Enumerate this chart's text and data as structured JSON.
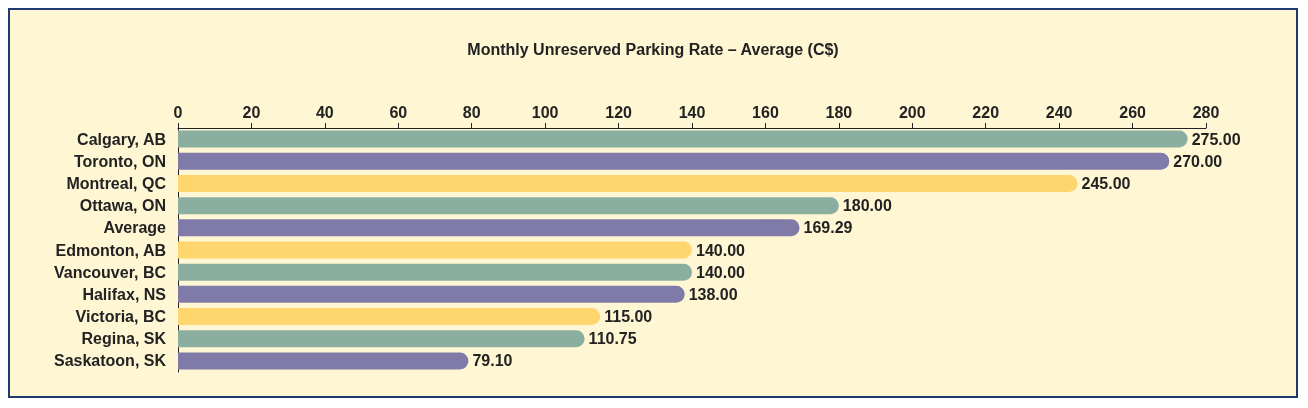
{
  "chart_data": {
    "type": "bar",
    "orientation": "horizontal",
    "title": "Monthly Unreserved Parking Rate – Average (C$)",
    "categories": [
      "Calgary, AB",
      "Toronto, ON",
      "Montreal, QC",
      "Ottawa, ON",
      "Average",
      "Edmonton, AB",
      "Vancouver, BC",
      "Halifax, NS",
      "Victoria, BC",
      "Regina, SK",
      "Saskatoon, SK"
    ],
    "values": [
      275,
      270,
      245,
      180,
      169.29,
      140,
      140,
      138,
      115,
      110.75,
      79.1
    ],
    "colors": [
      "#8aae9f",
      "#7f7aa8",
      "#ffd56e",
      "#8aae9f",
      "#7f7aa8",
      "#ffd56e",
      "#8aae9f",
      "#7f7aa8",
      "#ffd56e",
      "#8aae9f",
      "#7f7aa8"
    ],
    "value_labels": [
      "275.00",
      "270.00",
      "245.00",
      "180.00",
      "169.29",
      "140.00",
      "140.00",
      "138.00",
      "115.00",
      "110.75",
      "79.10"
    ],
    "xlim": [
      0,
      280
    ],
    "xticks": [
      0,
      20,
      40,
      60,
      80,
      100,
      120,
      140,
      160,
      180,
      200,
      220,
      240,
      260,
      280
    ],
    "grid": false
  }
}
